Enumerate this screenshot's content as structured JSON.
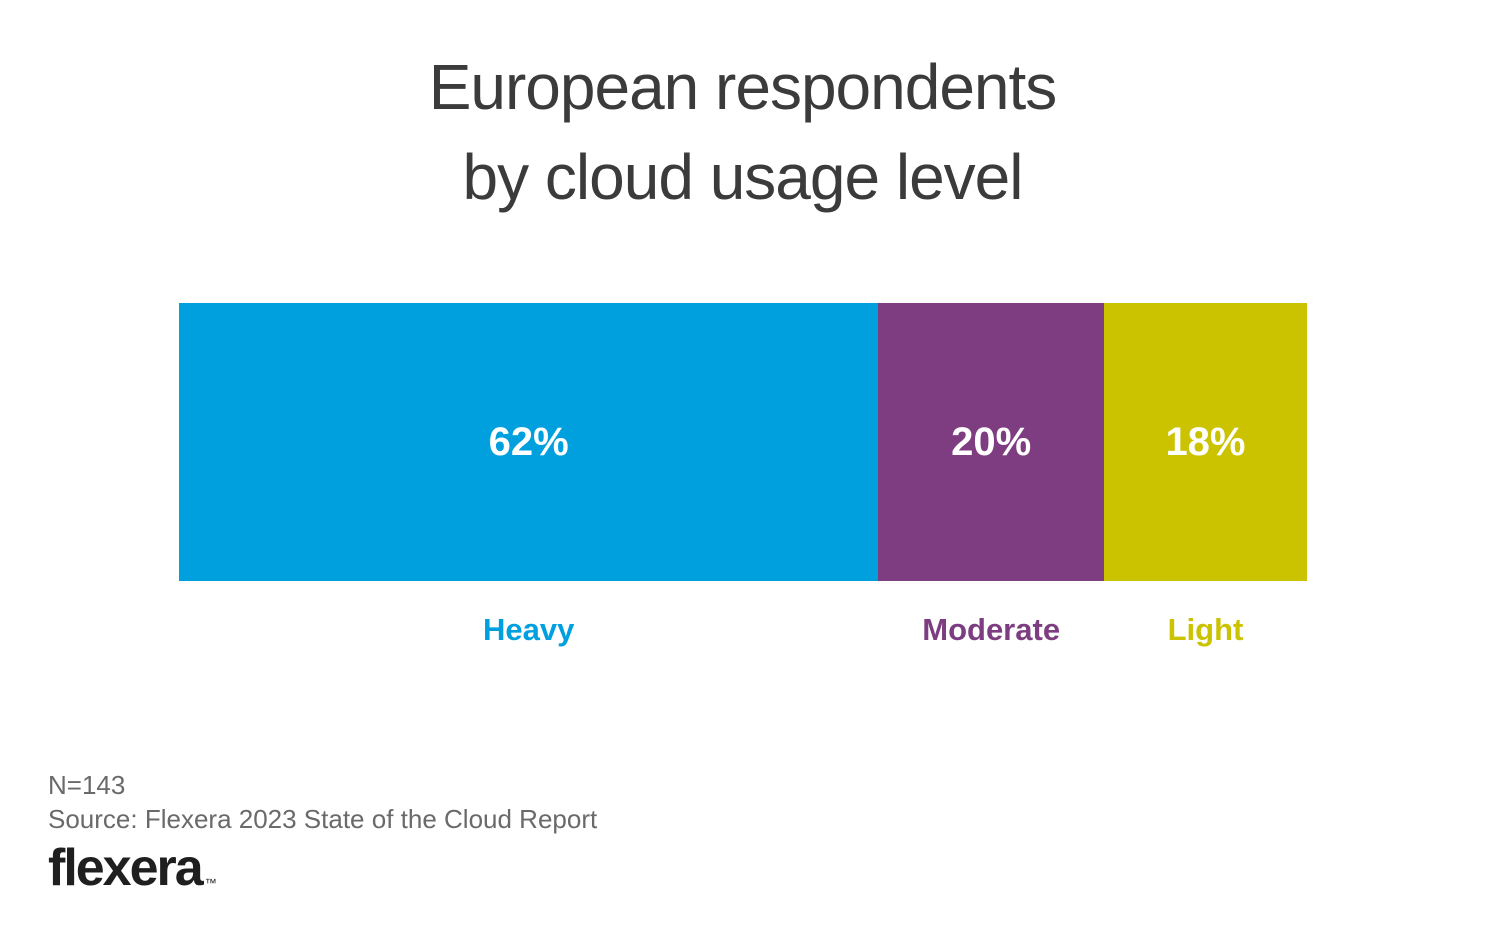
{
  "title": {
    "line1": "European respondents",
    "line2": "by cloud usage level"
  },
  "chart_data": {
    "type": "bar",
    "subtype": "horizontal-stacked-100pct",
    "title": "European respondents by cloud usage level",
    "categories": [
      "Heavy",
      "Moderate",
      "Light"
    ],
    "values": [
      62,
      20,
      18
    ],
    "value_labels": [
      "62%",
      "20%",
      "18%"
    ],
    "colors": [
      "#00a0df",
      "#7e3d80",
      "#cbc300"
    ],
    "value_label_color": "#ffffff",
    "category_label_position": "below-segment",
    "axes": "none",
    "grid": false,
    "legend_position": "none"
  },
  "footer": {
    "n_label": "N=143",
    "source": "Source: Flexera 2023 State of the Cloud Report",
    "logo_text": "flexera",
    "trademark": "™"
  },
  "colors": {
    "background": "#ffffff",
    "title_text": "#3b3b3b",
    "footer_text": "#6a6a6a",
    "logo_text": "#1f1f1f"
  }
}
